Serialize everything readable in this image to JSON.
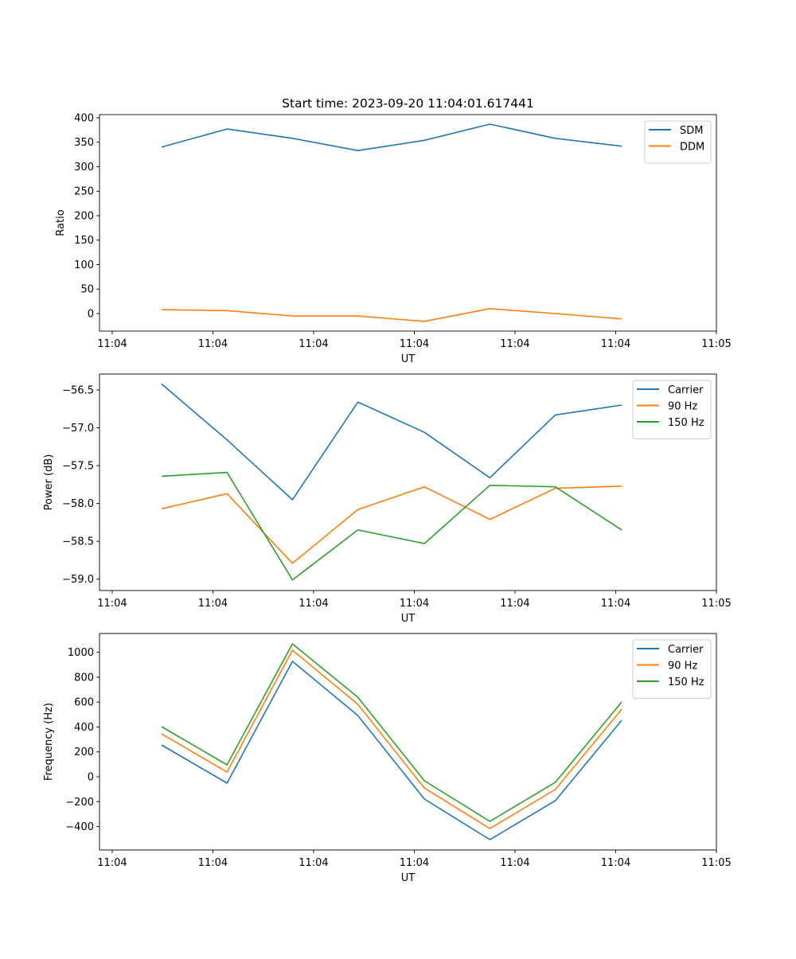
{
  "chart_data": [
    {
      "type": "line",
      "title": "Start time: 2023-09-20 11:04:01.617441",
      "xlabel": "UT",
      "ylabel": "Ratio",
      "x_units": "seconds after 11:04:00",
      "x": [
        4.9,
        11.4,
        17.9,
        24.4,
        31.0,
        37.5,
        44.0,
        50.6
      ],
      "xlim": [
        -1.26,
        60
      ],
      "xticks": [
        0,
        10,
        20,
        30,
        40,
        50,
        60
      ],
      "xticklabels": [
        "11:04",
        "11:04",
        "11:04",
        "11:04",
        "11:04",
        "11:04",
        "11:05"
      ],
      "ylim": [
        -35.8,
        406.5
      ],
      "yticks": [
        0,
        50,
        100,
        150,
        200,
        250,
        300,
        350,
        400
      ],
      "yticklabels": [
        "0",
        "50",
        "100",
        "150",
        "200",
        "250",
        "300",
        "350",
        "400"
      ],
      "legend": "top-right",
      "series": [
        {
          "name": "SDM",
          "color": "#1f77b4",
          "values": [
            340,
            377,
            358,
            333,
            354,
            387,
            358,
            342
          ]
        },
        {
          "name": "DDM",
          "color": "#ff7f0e",
          "values": [
            8,
            6,
            -5,
            -5,
            -16,
            10,
            0,
            -11
          ]
        }
      ]
    },
    {
      "type": "line",
      "title": "",
      "xlabel": "UT",
      "ylabel": "Power (dB)",
      "x": [
        4.9,
        11.4,
        17.9,
        24.4,
        31.0,
        37.5,
        44.0,
        50.6
      ],
      "xlim": [
        -1.26,
        60
      ],
      "xticks": [
        0,
        10,
        20,
        30,
        40,
        50,
        60
      ],
      "xticklabels": [
        "11:04",
        "11:04",
        "11:04",
        "11:04",
        "11:04",
        "11:04",
        "11:05"
      ],
      "ylim": [
        -59.15,
        -56.29
      ],
      "yticks": [
        -59.0,
        -58.5,
        -58.0,
        -57.5,
        -57.0,
        -56.5
      ],
      "yticklabels": [
        "−59.0",
        "−58.5",
        "−58.0",
        "−57.5",
        "−57.0",
        "−56.5"
      ],
      "legend": "top-right",
      "series": [
        {
          "name": "Carrier",
          "color": "#1f77b4",
          "values": [
            -56.42,
            -57.16,
            -57.95,
            -56.66,
            -57.06,
            -57.66,
            -56.83,
            -56.7
          ]
        },
        {
          "name": "90 Hz",
          "color": "#ff7f0e",
          "values": [
            -58.07,
            -57.87,
            -58.79,
            -58.08,
            -57.78,
            -58.21,
            -57.8,
            -57.77
          ]
        },
        {
          "name": "150 Hz",
          "color": "#2ca02c",
          "values": [
            -57.64,
            -57.59,
            -59.01,
            -58.35,
            -58.53,
            -57.76,
            -57.78,
            -58.35
          ]
        }
      ]
    },
    {
      "type": "line",
      "title": "",
      "xlabel": "UT",
      "ylabel": "Frequency (Hz)",
      "x": [
        4.9,
        11.4,
        17.9,
        24.4,
        31.0,
        37.5,
        44.0,
        50.6
      ],
      "xlim": [
        -1.26,
        60
      ],
      "xticks": [
        0,
        10,
        20,
        30,
        40,
        50,
        60
      ],
      "xticklabels": [
        "11:04",
        "11:04",
        "11:04",
        "11:04",
        "11:04",
        "11:04",
        "11:05"
      ],
      "ylim": [
        -588,
        1151
      ],
      "yticks": [
        -400,
        -200,
        0,
        200,
        400,
        600,
        800,
        1000
      ],
      "yticklabels": [
        "−400",
        "−200",
        "0",
        "200",
        "400",
        "600",
        "800",
        "1000"
      ],
      "legend": "top-right",
      "series": [
        {
          "name": "Carrier",
          "color": "#1f77b4",
          "values": [
            256,
            -51,
            927,
            492,
            -179,
            -505,
            -192,
            454
          ]
        },
        {
          "name": "90 Hz",
          "color": "#ff7f0e",
          "values": [
            345,
            38,
            1017,
            582,
            -90,
            -416,
            -102,
            543
          ]
        },
        {
          "name": "150 Hz",
          "color": "#2ca02c",
          "values": [
            403,
            96,
            1068,
            639,
            -32,
            -358,
            -45,
            601
          ]
        }
      ]
    }
  ]
}
